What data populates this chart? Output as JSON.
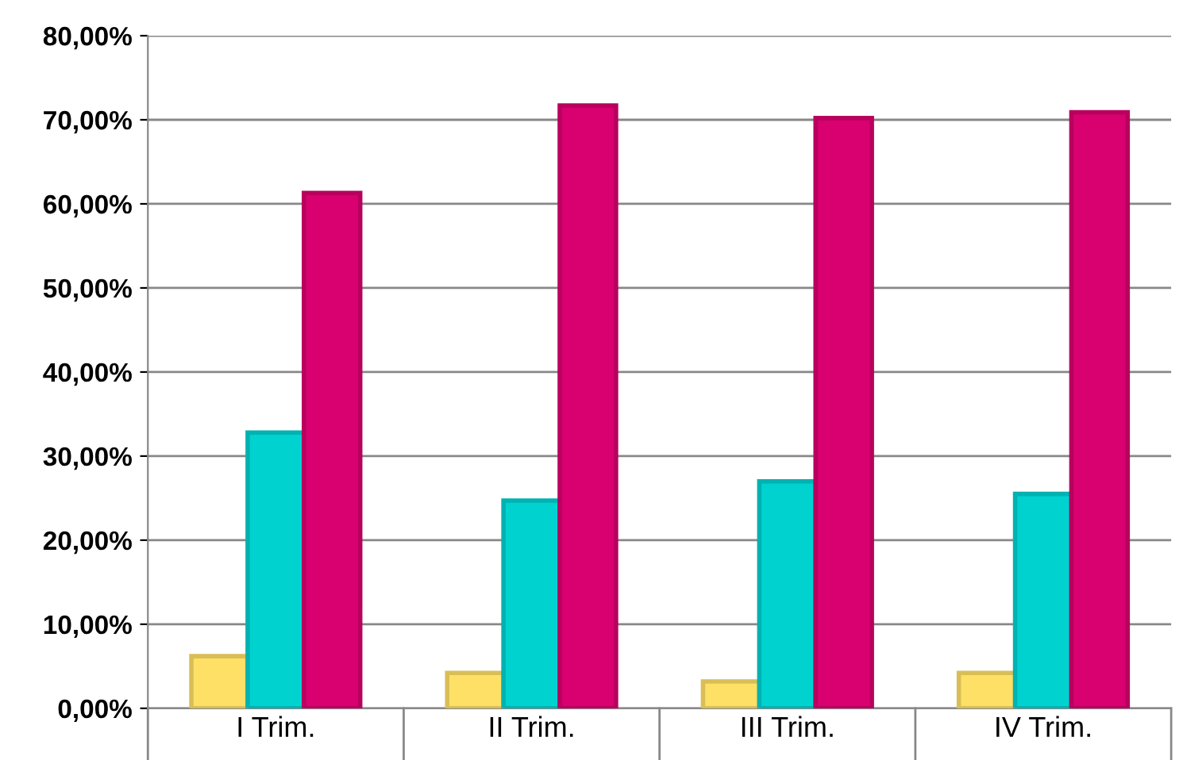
{
  "chart_data": {
    "type": "bar",
    "categories": [
      "I Trim.",
      "II Trim.",
      "III Trim.",
      "IV Trim."
    ],
    "series": [
      {
        "color": "#ffe066",
        "values": [
          6.2,
          4.2,
          3.2,
          4.2
        ]
      },
      {
        "color": "#00d2d0",
        "values": [
          32.8,
          24.7,
          27.0,
          25.5
        ]
      },
      {
        "color": "#d9006f",
        "values": [
          61.3,
          71.7,
          70.2,
          70.9
        ]
      }
    ],
    "ylim": [
      0,
      80
    ],
    "yticks": [
      {
        "value": 0,
        "label": "0,00%"
      },
      {
        "value": 10,
        "label": "10,00%"
      },
      {
        "value": 20,
        "label": "20,00%"
      },
      {
        "value": 30,
        "label": "30,00%"
      },
      {
        "value": 40,
        "label": "40,00%"
      },
      {
        "value": 50,
        "label": "50,00%"
      },
      {
        "value": 60,
        "label": "60,00%"
      },
      {
        "value": 70,
        "label": "70,00%"
      },
      {
        "value": 80,
        "label": "80,00%"
      }
    ],
    "grid": "y",
    "legend": false
  }
}
